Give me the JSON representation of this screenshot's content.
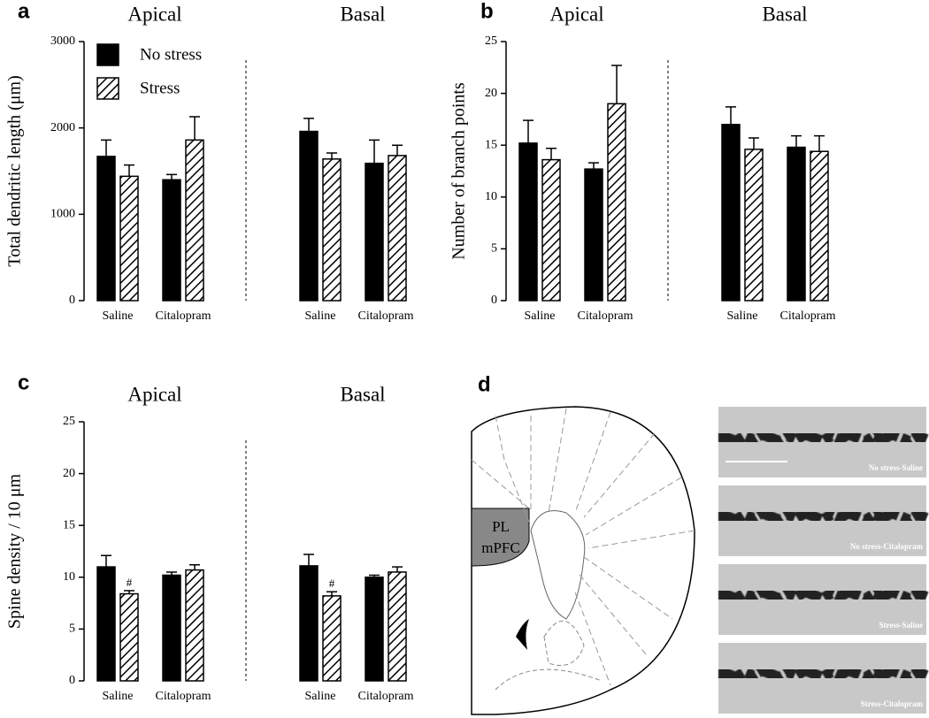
{
  "chart_data": [
    {
      "type": "bar",
      "panel": "a",
      "groups": [
        "Apical",
        "Basal"
      ],
      "ylabel": "Total dendritic length (μm)",
      "categories": [
        "Saline",
        "Citalopram",
        "Saline",
        "Citalopram"
      ],
      "ylim": [
        0,
        3000
      ],
      "yticks": [
        0,
        1000,
        2000,
        3000
      ],
      "legend": true,
      "series": [
        {
          "name": "No stress",
          "color": "#000000",
          "values": [
            1670,
            1400,
            1960,
            1590
          ],
          "errors": [
            190,
            60,
            150,
            270
          ]
        },
        {
          "name": "Stress",
          "color": "#ffffff",
          "pattern": "hatch",
          "values": [
            1440,
            1860,
            1640,
            1680
          ],
          "errors": [
            130,
            270,
            70,
            120
          ]
        }
      ]
    },
    {
      "type": "bar",
      "panel": "b",
      "groups": [
        "Apical",
        "Basal"
      ],
      "ylabel": "Number of branch points",
      "categories": [
        "Saline",
        "Citalopram",
        "Saline",
        "Citalopram"
      ],
      "ylim": [
        0,
        25
      ],
      "yticks": [
        0,
        5,
        10,
        15,
        20,
        25
      ],
      "legend": false,
      "series": [
        {
          "name": "No stress",
          "color": "#000000",
          "values": [
            15.2,
            12.7,
            17.0,
            14.8
          ],
          "errors": [
            2.2,
            0.6,
            1.7,
            1.1
          ]
        },
        {
          "name": "Stress",
          "color": "#ffffff",
          "pattern": "hatch",
          "values": [
            13.6,
            19.0,
            14.6,
            14.4
          ],
          "errors": [
            1.1,
            3.7,
            1.1,
            1.5
          ]
        }
      ]
    },
    {
      "type": "bar",
      "panel": "c",
      "groups": [
        "Apical",
        "Basal"
      ],
      "ylabel": "Spine density / 10 μm",
      "categories": [
        "Saline",
        "Citalopram",
        "Saline",
        "Citalopram"
      ],
      "ylim": [
        0,
        25
      ],
      "yticks": [
        0,
        5,
        10,
        15,
        20,
        25
      ],
      "legend": false,
      "series": [
        {
          "name": "No stress",
          "color": "#000000",
          "values": [
            11.0,
            10.2,
            11.1,
            10.0
          ],
          "errors": [
            1.1,
            0.3,
            1.1,
            0.2
          ]
        },
        {
          "name": "Stress",
          "color": "#ffffff",
          "pattern": "hatch",
          "values": [
            8.4,
            10.7,
            8.2,
            10.5
          ],
          "errors": [
            0.3,
            0.5,
            0.4,
            0.5
          ],
          "markers": [
            "#",
            null,
            "#",
            null
          ]
        }
      ]
    }
  ],
  "panel_d": {
    "panel": "d",
    "region_label": [
      "PL",
      "mPFC"
    ],
    "images": [
      "No stress-Saline",
      "No stress-Citalopram",
      "Stress-Saline",
      "Stress-Citalopram"
    ]
  }
}
